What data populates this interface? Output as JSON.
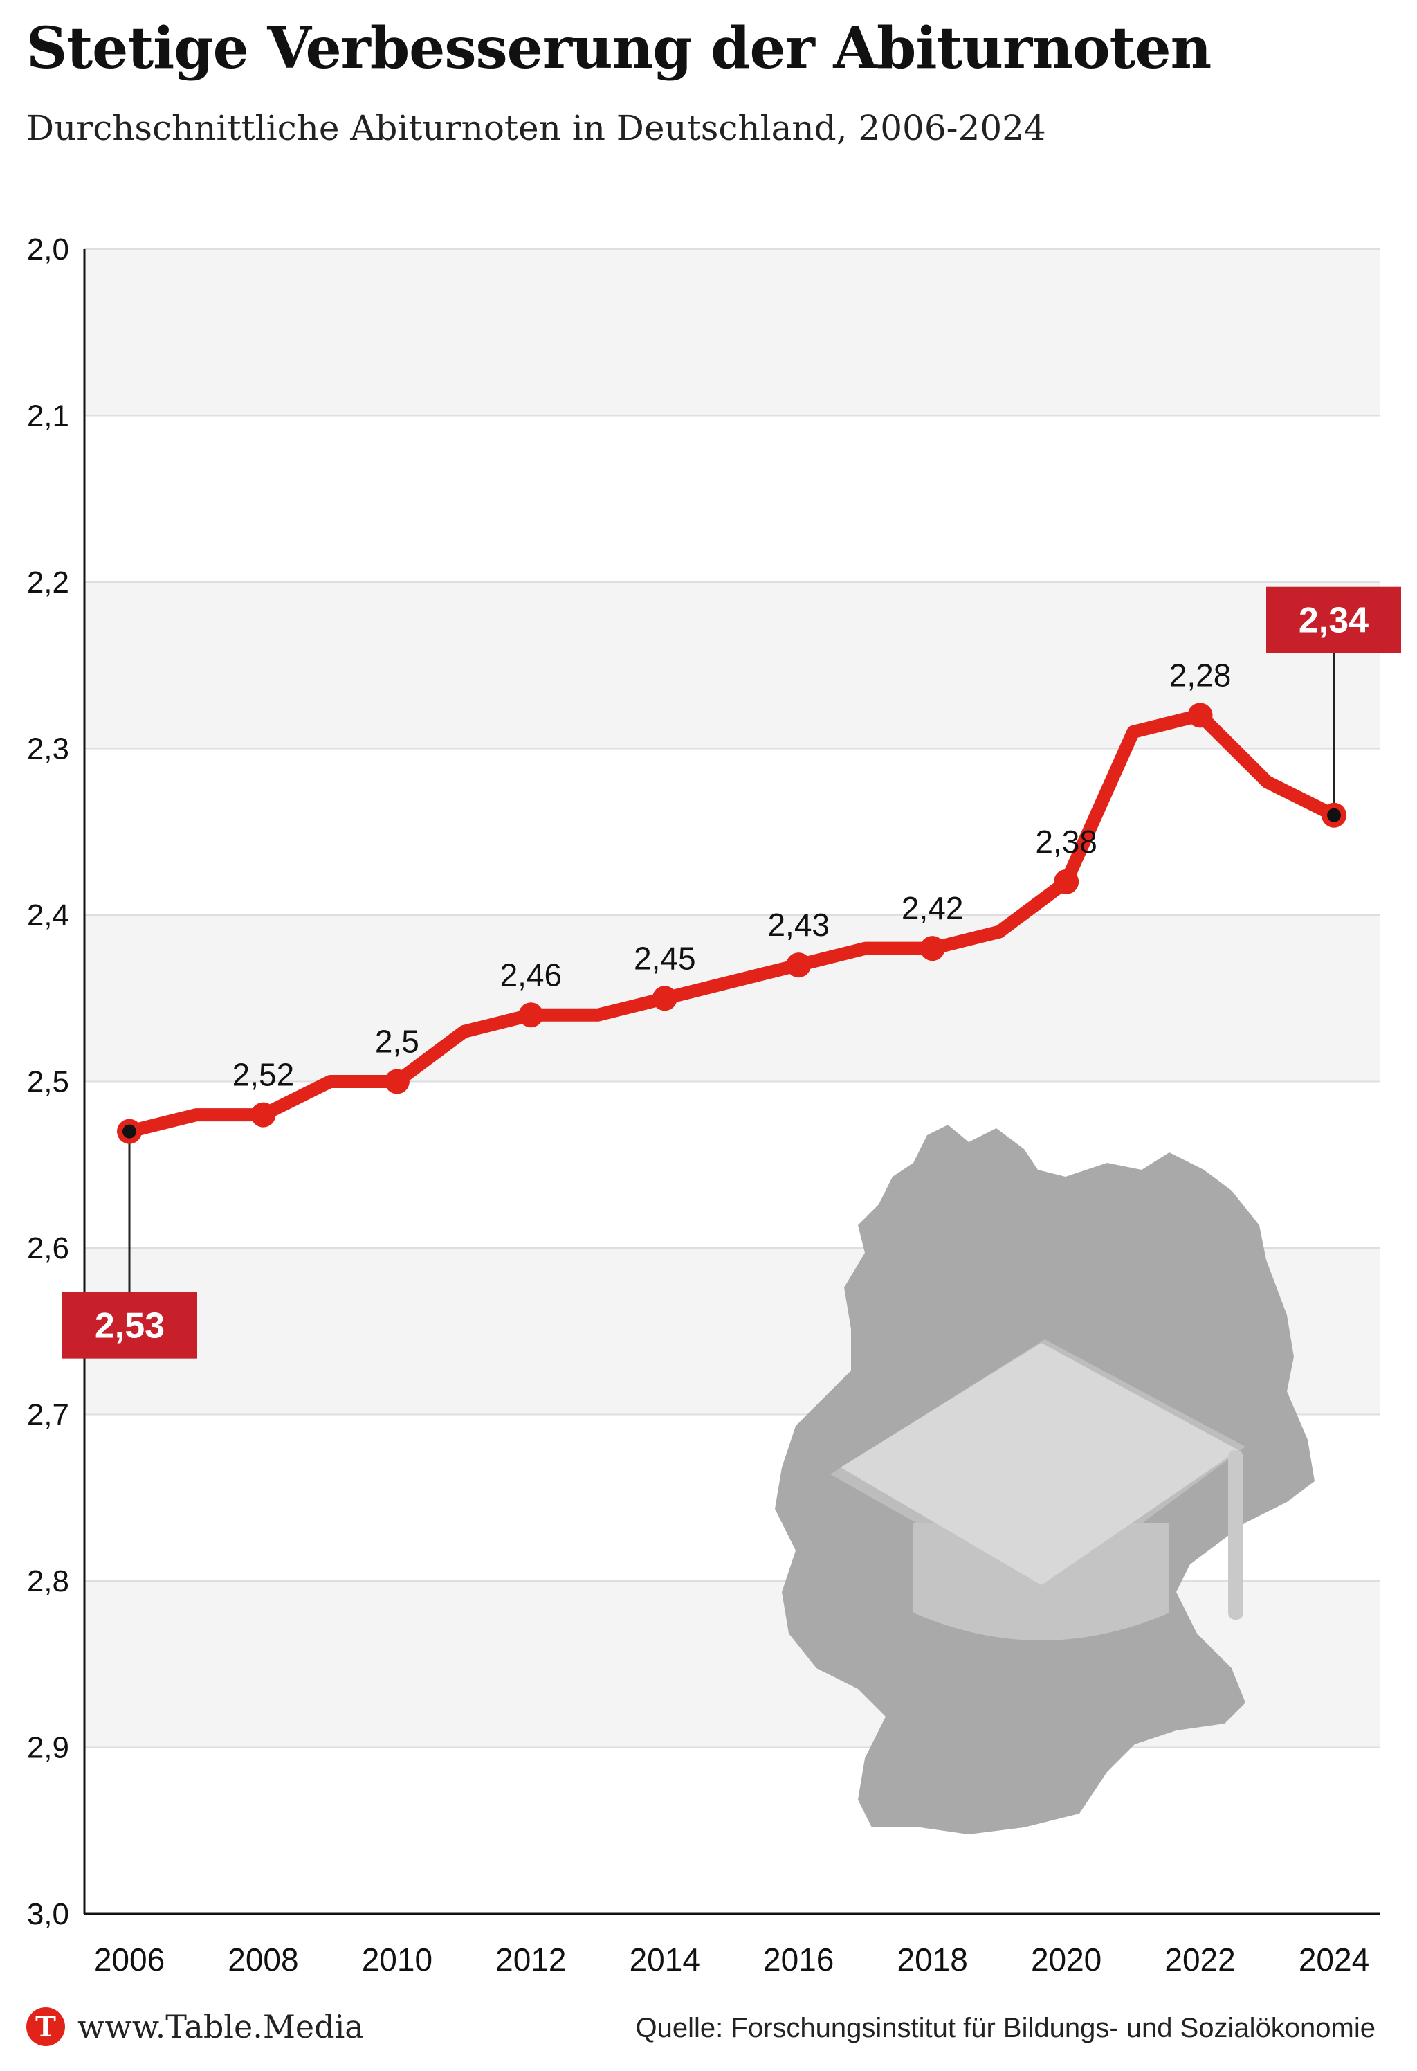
{
  "header": {
    "title": "Stetige Verbesserung der Abiturnoten",
    "subtitle": "Durchschnittliche Abiturnoten in Deutschland, 2006-2024"
  },
  "footer": {
    "logo_letter": "T",
    "logo_text": "www.Table.Media",
    "source": "Quelle: Forschungsinstitut für Bildungs- und Sozialökonomie"
  },
  "colors": {
    "line": "#e2231a",
    "callout": "#c8202a",
    "band": "#f4f4f4",
    "map": "#a9a9a9"
  },
  "icons": {
    "background": "germany-map-icon",
    "overlay": "graduation-cap-icon"
  },
  "chart_data": {
    "type": "line",
    "x": [
      2006,
      2007,
      2008,
      2009,
      2010,
      2011,
      2012,
      2013,
      2014,
      2015,
      2016,
      2017,
      2018,
      2019,
      2020,
      2021,
      2022,
      2023,
      2024
    ],
    "values": [
      2.53,
      2.52,
      2.52,
      2.5,
      2.5,
      2.47,
      2.46,
      2.46,
      2.45,
      2.44,
      2.43,
      2.42,
      2.42,
      2.41,
      2.38,
      2.29,
      2.28,
      2.32,
      2.34
    ],
    "point_labels": {
      "2008": "2,52",
      "2010": "2,5",
      "2012": "2,46",
      "2014": "2,45",
      "2016": "2,43",
      "2018": "2,42",
      "2020": "2,38",
      "2022": "2,28"
    },
    "callouts": [
      {
        "x": 2006,
        "label": "2,53",
        "position": "below"
      },
      {
        "x": 2024,
        "label": "2,34",
        "position": "above"
      }
    ],
    "ylim": [
      2.0,
      3.0
    ],
    "y_inverted": true,
    "y_ticks": [
      "2,0",
      "2,1",
      "2,2",
      "2,3",
      "2,4",
      "2,5",
      "2,6",
      "2,7",
      "2,8",
      "2,9",
      "3,0"
    ],
    "x_ticks": [
      "2006",
      "2008",
      "2010",
      "2012",
      "2014",
      "2016",
      "2018",
      "2020",
      "2022",
      "2024"
    ],
    "grid": true,
    "banded_background": true,
    "legend": "none"
  }
}
